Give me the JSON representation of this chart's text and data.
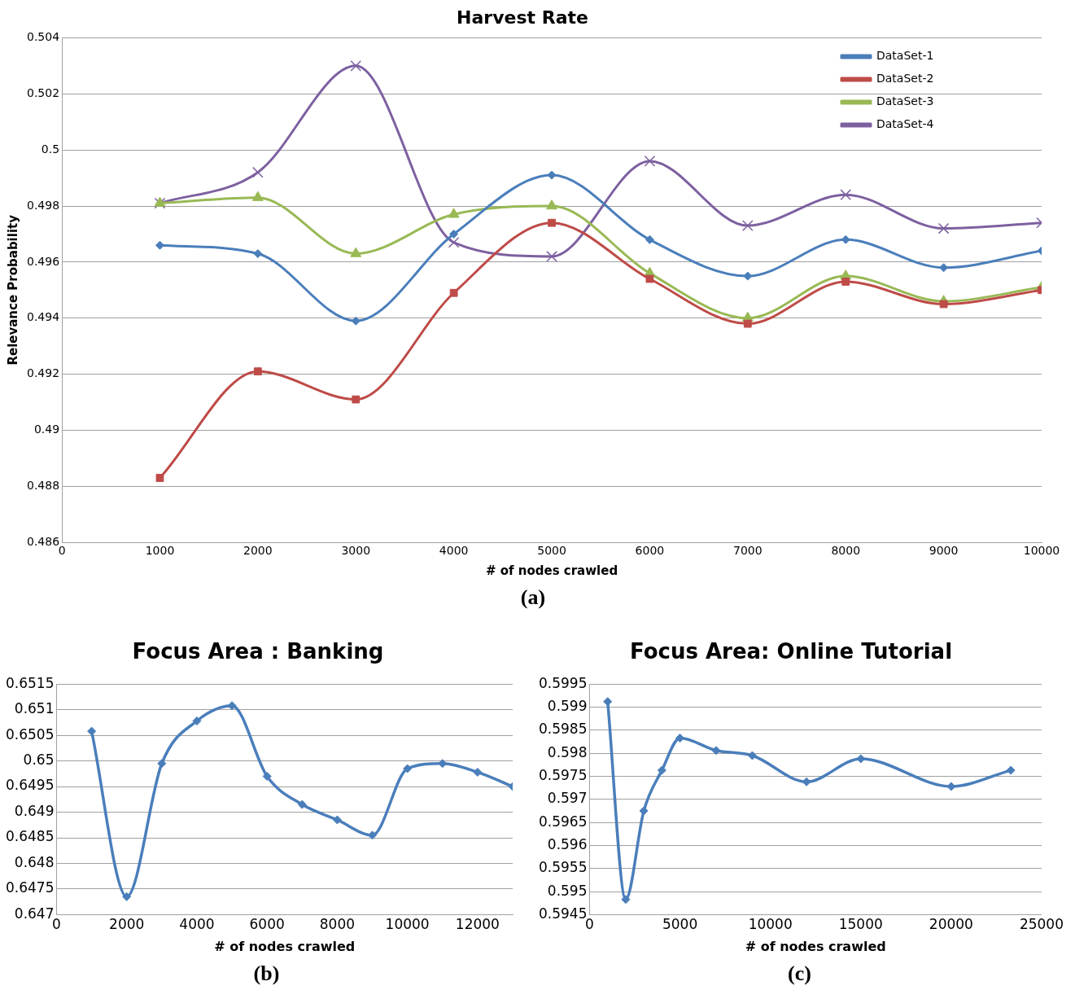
{
  "chart_data": [
    {
      "type": "line",
      "title": "Harvest Rate",
      "xlabel": "# of nodes crawled",
      "ylabel": "Relevance Probability",
      "x": [
        1000,
        2000,
        3000,
        4000,
        5000,
        6000,
        7000,
        8000,
        9000,
        10000
      ],
      "xlim": [
        0,
        10000
      ],
      "xticks": [
        0,
        1000,
        2000,
        3000,
        4000,
        5000,
        6000,
        7000,
        8000,
        9000,
        10000
      ],
      "ylim": [
        0.486,
        0.504
      ],
      "yticks": [
        0.486,
        0.488,
        0.49,
        0.492,
        0.494,
        0.496,
        0.498,
        0.5,
        0.502,
        0.504
      ],
      "grid": "y",
      "legend": "top right",
      "annotations": [
        "(a)"
      ],
      "series": [
        {
          "name": "DataSet-1",
          "color": "#4a7ebb",
          "marker": "diamond",
          "values": [
            0.4966,
            0.4963,
            0.4939,
            0.497,
            0.4991,
            0.4968,
            0.4955,
            0.4968,
            0.4958,
            0.4964
          ]
        },
        {
          "name": "DataSet-2",
          "color": "#be4b48",
          "marker": "square",
          "values": [
            0.4883,
            0.4921,
            0.4911,
            0.4949,
            0.4974,
            0.4954,
            0.4938,
            0.4953,
            0.4945,
            0.495
          ]
        },
        {
          "name": "DataSet-3",
          "color": "#98b954",
          "marker": "triangle",
          "values": [
            0.4981,
            0.4983,
            0.4963,
            0.4977,
            0.498,
            0.4956,
            0.494,
            0.4955,
            0.4946,
            0.4951
          ]
        },
        {
          "name": "DataSet-4",
          "color": "#7d60a0",
          "marker": "cross",
          "values": [
            0.4981,
            0.4992,
            0.503,
            0.4967,
            0.4962,
            0.4996,
            0.4973,
            0.4984,
            0.4972,
            0.4974
          ]
        }
      ]
    },
    {
      "type": "line",
      "title": "Focus Area : Banking",
      "xlabel": "# of nodes crawled",
      "x": [
        1000,
        2000,
        3000,
        4000,
        5000,
        6000,
        7000,
        8000,
        9000,
        10000,
        11000,
        12000,
        13000
      ],
      "xlim": [
        0,
        13000
      ],
      "xticks": [
        0,
        2000,
        4000,
        6000,
        8000,
        10000,
        12000
      ],
      "ylim": [
        0.647,
        0.6515
      ],
      "yticks": [
        0.647,
        0.6475,
        0.648,
        0.6485,
        0.649,
        0.6495,
        0.65,
        0.6505,
        0.651,
        0.6515
      ],
      "grid": "y",
      "marker": "diamond",
      "annotations": [
        "(b)"
      ],
      "series": [
        {
          "color": "#4a7ebb",
          "values": [
            0.65058,
            0.64735,
            0.64995,
            0.65078,
            0.65108,
            0.6497,
            0.64915,
            0.64885,
            0.64855,
            0.64985,
            0.64995,
            0.64978,
            0.6495
          ]
        }
      ]
    },
    {
      "type": "line",
      "title": "Focus Area: Online Tutorial",
      "xlabel": "# of nodes crawled",
      "x": [
        1000,
        2000,
        3000,
        4000,
        5000,
        7000,
        9000,
        12000,
        15000,
        20000,
        23300
      ],
      "xlim": [
        0,
        25000
      ],
      "xticks": [
        0,
        5000,
        10000,
        15000,
        20000,
        25000
      ],
      "ylim": [
        0.5945,
        0.5995
      ],
      "yticks": [
        0.5945,
        0.595,
        0.5955,
        0.596,
        0.5965,
        0.597,
        0.5975,
        0.598,
        0.5985,
        0.599,
        0.5995
      ],
      "grid": "y",
      "marker": "diamond",
      "annotations": [
        "(c)"
      ],
      "series": [
        {
          "color": "#4a7ebb",
          "values": [
            0.59912,
            0.59483,
            0.59675,
            0.59763,
            0.59833,
            0.59806,
            0.59795,
            0.59738,
            0.59788,
            0.59728,
            0.59763
          ]
        }
      ]
    }
  ]
}
